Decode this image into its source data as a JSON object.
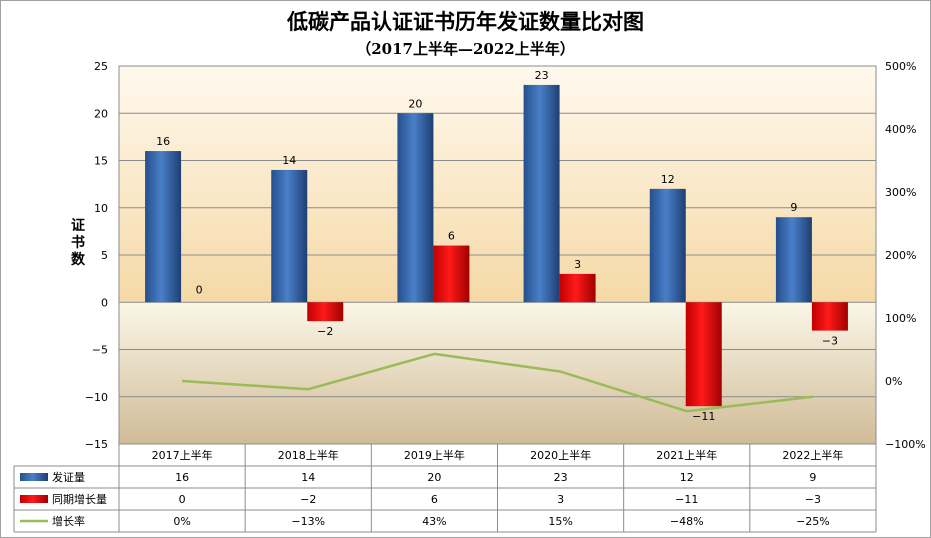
{
  "chart_data": {
    "type": "bar",
    "title": "低碳产品认证证书历年发证数量比对图",
    "subtitle": "（2017上半年—2022上半年）",
    "ylabel": "证书数",
    "categories": [
      "2017上半年",
      "2018上半年",
      "2019上半年",
      "2020上半年",
      "2021上半年",
      "2022上半年"
    ],
    "ylim": [
      -15,
      25
    ],
    "yticks": [
      25,
      20,
      15,
      10,
      5,
      0,
      -5,
      -10,
      -15
    ],
    "ylim_right": [
      -100,
      500
    ],
    "yticks_right": [
      "500%",
      "400%",
      "300%",
      "200%",
      "100%",
      "0%",
      "-100%"
    ],
    "series": [
      {
        "name": "发证量",
        "type": "bar",
        "values": [
          16,
          14,
          20,
          23,
          12,
          9
        ],
        "labels": [
          "16",
          "14",
          "20",
          "23",
          "12",
          "9"
        ],
        "color": "#3b6db3"
      },
      {
        "name": "同期增长量",
        "type": "bar",
        "values": [
          0,
          -2,
          6,
          3,
          -11,
          -3
        ],
        "labels": [
          "0",
          "−2",
          "6",
          "3",
          "−11",
          "−3"
        ],
        "color": "#e60000"
      },
      {
        "name": "增长率",
        "type": "line",
        "axis": "right",
        "values": [
          0,
          -13,
          43,
          15,
          -48,
          -25
        ],
        "labels": [
          "0%",
          "−13%",
          "43%",
          "15%",
          "−48%",
          "−25%"
        ],
        "color": "#9bbb59"
      }
    ]
  }
}
